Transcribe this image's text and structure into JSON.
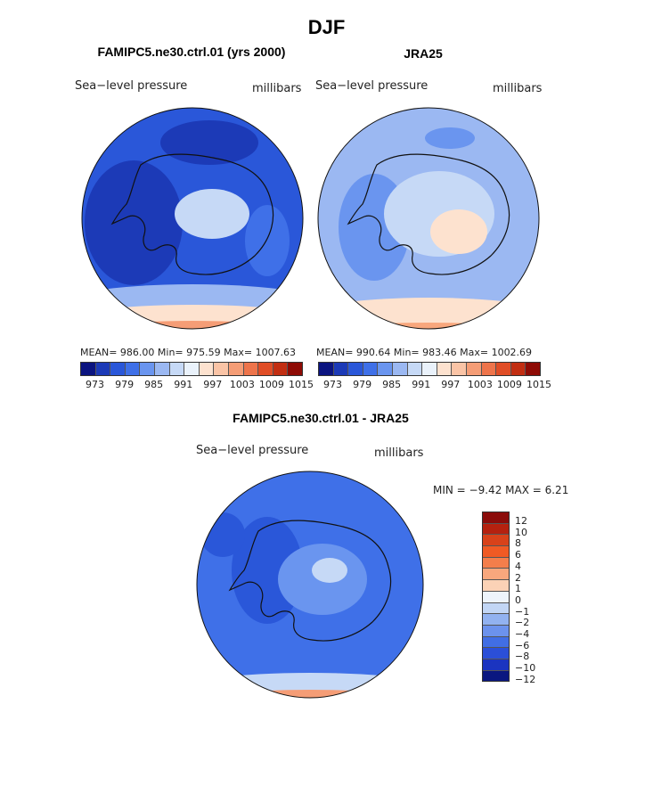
{
  "figure": {
    "main_title": "DJF",
    "panels": [
      {
        "title": "FAMIPC5.ne30.ctrl.01 (yrs 2000)",
        "variable": "Sea−level pressure",
        "units": "millibars",
        "stats": "MEAN= 986.00   Min= 975.59   Max= 1007.63",
        "colorbar_ticks": [
          "973",
          "979",
          "985",
          "991",
          "997",
          "1003",
          "1009",
          "1015"
        ]
      },
      {
        "title": "JRA25",
        "variable": "Sea−level pressure",
        "units": "millibars",
        "stats": "MEAN= 990.64   Min= 983.46   Max= 1002.69",
        "colorbar_ticks": [
          "973",
          "979",
          "985",
          "991",
          "997",
          "1003",
          "1009",
          "1015"
        ]
      },
      {
        "title": "FAMIPC5.ne30.ctrl.01 - JRA25",
        "variable": "Sea−level pressure",
        "units": "millibars",
        "minmax": "MIN =   −9.42  MAX =    6.21",
        "colorbar_labels": [
          "12",
          "10",
          "8",
          "6",
          "4",
          "2",
          "1",
          "0",
          "−1",
          "−2",
          "−4",
          "−6",
          "−8",
          "−10",
          "−12"
        ]
      }
    ],
    "colors": {
      "abs_scale": [
        "#0b1480",
        "#1c3ab7",
        "#2a57d9",
        "#3f70e8",
        "#6a95ef",
        "#9bb8f2",
        "#c6d9f6",
        "#eaf2fb",
        "#fde2cf",
        "#fac4a6",
        "#f59d76",
        "#ee744b",
        "#e04d26",
        "#c22e12",
        "#8e0b05"
      ],
      "diff_scale": [
        "#8b0c0a",
        "#b5210f",
        "#d8421a",
        "#f05a24",
        "#f47e4b",
        "#f8a77d",
        "#fbd2b6",
        "#eef4fb",
        "#c2d6f5",
        "#92b2f0",
        "#6c92ec",
        "#416ee4",
        "#2b4fd8",
        "#1b34c0",
        "#0a1780"
      ],
      "field_model": {
        "deep": "#1c3ab7",
        "mid": "#2a57d9",
        "light": "#3f70e8",
        "ice": "#9bb8f2",
        "pale": "#c6d9f6",
        "peach": "#fde2cf",
        "warm": "#f59d76"
      },
      "field_obs": {
        "base": "#9bb8f2",
        "mid": "#6a95ef",
        "pale": "#c6d9f6",
        "peach": "#fde2cf",
        "warm": "#f8a77d"
      },
      "field_diff": {
        "base": "#3f70e8",
        "deep": "#2a57d9",
        "light": "#6a95ef",
        "pale": "#c6d9f6",
        "warm": "#f59d76"
      }
    }
  }
}
